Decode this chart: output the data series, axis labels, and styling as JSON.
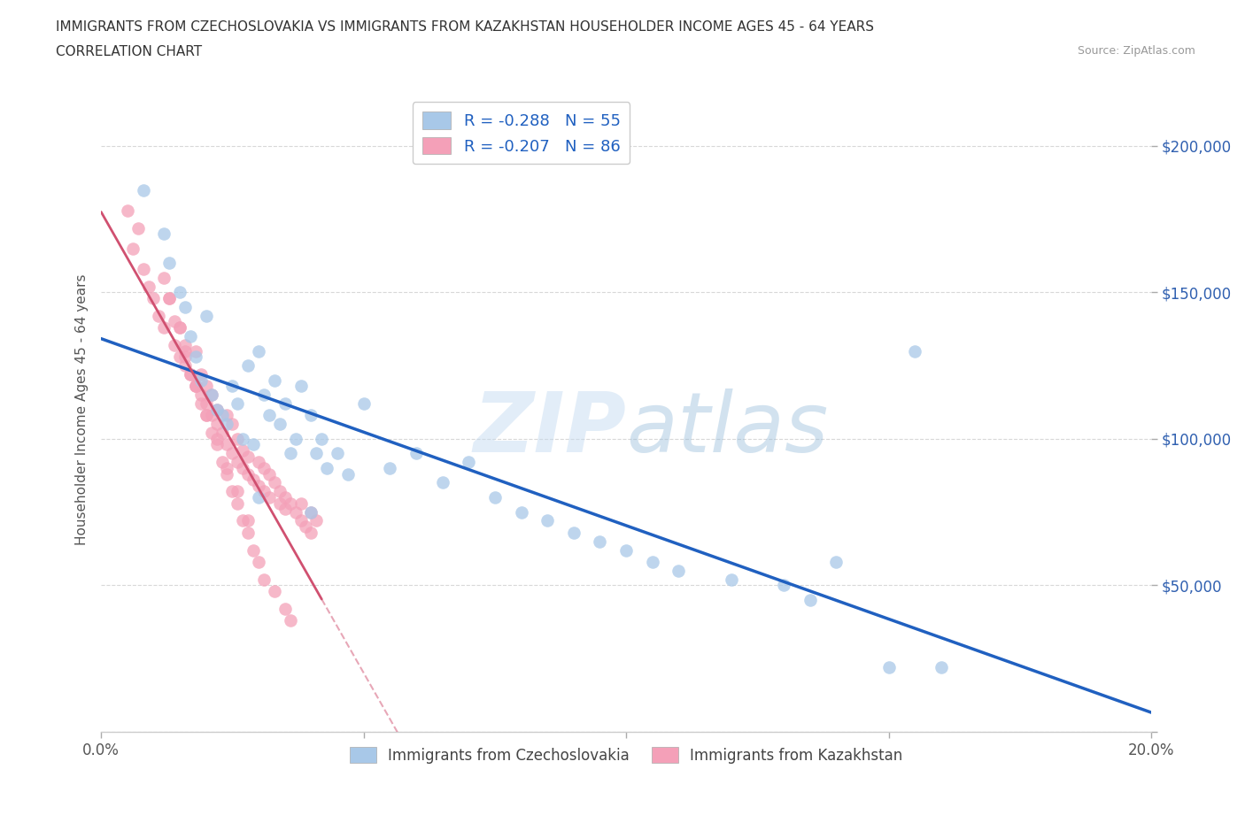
{
  "title_line1": "IMMIGRANTS FROM CZECHOSLOVAKIA VS IMMIGRANTS FROM KAZAKHSTAN HOUSEHOLDER INCOME AGES 45 - 64 YEARS",
  "title_line2": "CORRELATION CHART",
  "source": "Source: ZipAtlas.com",
  "ylabel": "Householder Income Ages 45 - 64 years",
  "xlim": [
    0.0,
    0.2
  ],
  "ylim": [
    0,
    220000
  ],
  "yticks": [
    0,
    50000,
    100000,
    150000,
    200000
  ],
  "ytick_labels": [
    "",
    "$50,000",
    "$100,000",
    "$150,000",
    "$200,000"
  ],
  "xticks": [
    0.0,
    0.05,
    0.1,
    0.15,
    0.2
  ],
  "xtick_labels": [
    "0.0%",
    "",
    "",
    "",
    "20.0%"
  ],
  "watermark": "ZIPatlas",
  "legend_r_czech": "R = -0.288   N = 55",
  "legend_r_kazakh": "R = -0.207   N = 86",
  "color_czech": "#a8c8e8",
  "color_kazakh": "#f4a0b8",
  "color_line_czech": "#2060c0",
  "color_line_kazakh": "#d05070",
  "legend_label_czech": "Immigrants from Czechoslovakia",
  "legend_label_kazakh": "Immigrants from Kazakhstan",
  "background_color": "#ffffff",
  "grid_color": "#d8d8d8",
  "czech_x": [
    0.008,
    0.012,
    0.013,
    0.015,
    0.016,
    0.017,
    0.018,
    0.019,
    0.02,
    0.021,
    0.022,
    0.023,
    0.024,
    0.025,
    0.026,
    0.027,
    0.028,
    0.029,
    0.03,
    0.031,
    0.032,
    0.033,
    0.034,
    0.035,
    0.036,
    0.037,
    0.038,
    0.04,
    0.041,
    0.042,
    0.043,
    0.045,
    0.047,
    0.05,
    0.055,
    0.06,
    0.065,
    0.07,
    0.075,
    0.08,
    0.085,
    0.09,
    0.095,
    0.1,
    0.105,
    0.11,
    0.12,
    0.13,
    0.135,
    0.14,
    0.155,
    0.03,
    0.04,
    0.15,
    0.16
  ],
  "czech_y": [
    185000,
    170000,
    160000,
    150000,
    145000,
    135000,
    128000,
    120000,
    142000,
    115000,
    110000,
    108000,
    105000,
    118000,
    112000,
    100000,
    125000,
    98000,
    130000,
    115000,
    108000,
    120000,
    105000,
    112000,
    95000,
    100000,
    118000,
    108000,
    95000,
    100000,
    90000,
    95000,
    88000,
    112000,
    90000,
    95000,
    85000,
    92000,
    80000,
    75000,
    72000,
    68000,
    65000,
    62000,
    58000,
    55000,
    52000,
    50000,
    45000,
    58000,
    130000,
    80000,
    75000,
    22000,
    22000
  ],
  "kazakh_x": [
    0.005,
    0.006,
    0.007,
    0.008,
    0.009,
    0.01,
    0.011,
    0.012,
    0.013,
    0.014,
    0.015,
    0.015,
    0.016,
    0.016,
    0.017,
    0.018,
    0.018,
    0.019,
    0.019,
    0.02,
    0.02,
    0.021,
    0.021,
    0.022,
    0.022,
    0.023,
    0.024,
    0.024,
    0.025,
    0.025,
    0.026,
    0.026,
    0.027,
    0.027,
    0.028,
    0.028,
    0.029,
    0.03,
    0.03,
    0.031,
    0.031,
    0.032,
    0.032,
    0.033,
    0.034,
    0.034,
    0.035,
    0.035,
    0.036,
    0.037,
    0.038,
    0.038,
    0.039,
    0.04,
    0.04,
    0.041,
    0.012,
    0.013,
    0.015,
    0.016,
    0.017,
    0.018,
    0.019,
    0.02,
    0.021,
    0.022,
    0.023,
    0.024,
    0.025,
    0.026,
    0.027,
    0.028,
    0.029,
    0.03,
    0.031,
    0.033,
    0.035,
    0.036,
    0.014,
    0.016,
    0.018,
    0.02,
    0.022,
    0.024,
    0.026,
    0.028
  ],
  "kazakh_y": [
    178000,
    165000,
    172000,
    158000,
    152000,
    148000,
    142000,
    138000,
    148000,
    132000,
    128000,
    138000,
    125000,
    132000,
    122000,
    118000,
    130000,
    115000,
    122000,
    112000,
    118000,
    108000,
    115000,
    105000,
    110000,
    102000,
    98000,
    108000,
    95000,
    105000,
    92000,
    100000,
    90000,
    96000,
    88000,
    94000,
    86000,
    92000,
    84000,
    90000,
    82000,
    88000,
    80000,
    85000,
    82000,
    78000,
    80000,
    76000,
    78000,
    75000,
    72000,
    78000,
    70000,
    75000,
    68000,
    72000,
    155000,
    148000,
    138000,
    130000,
    122000,
    118000,
    112000,
    108000,
    102000,
    98000,
    92000,
    88000,
    82000,
    78000,
    72000,
    68000,
    62000,
    58000,
    52000,
    48000,
    42000,
    38000,
    140000,
    128000,
    118000,
    108000,
    100000,
    90000,
    82000,
    72000
  ]
}
